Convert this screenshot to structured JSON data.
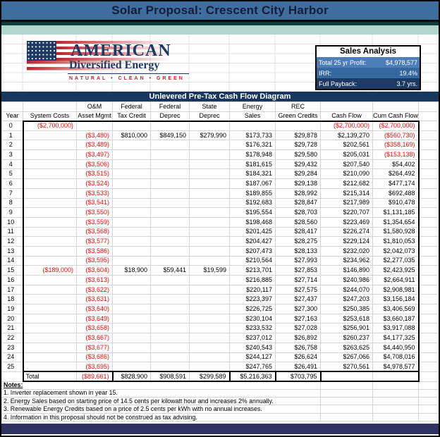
{
  "banner": {
    "title": "Solar Proposal: Crescent City Harbor"
  },
  "logo": {
    "name": "AMERICAN",
    "subtitle": "Diversified Energy",
    "tagline": "NATURAL • CLEAN • GREEN"
  },
  "sales_analysis": {
    "title": "Sales Analysis",
    "rows": [
      {
        "label": "Total 25 yr Profit:",
        "value": "$4,978,577"
      },
      {
        "label": "IRR:",
        "value": "19.4%"
      },
      {
        "label": "Full Payback:",
        "value": "3.7 yrs."
      }
    ]
  },
  "table": {
    "title": "Unlevered Pre-Tax Cash Flow Diagram",
    "header_top": [
      "",
      "",
      "O&M",
      "Federal",
      "Federal",
      "State",
      "Energy",
      "REC",
      "",
      "",
      ""
    ],
    "header_bottom": [
      "Year",
      "System Costs",
      "Asset Mgmt",
      "Tax Credit",
      "Deprec",
      "Deprec",
      "Sales",
      "Green Credits",
      "Cash Flow",
      "Cum Cash Flow",
      ""
    ],
    "rows": [
      [
        "0",
        "($2,700,000)",
        "",
        "",
        "",
        "",
        "",
        "",
        "($2,700,000)",
        "($2,700,000)"
      ],
      [
        "1",
        "",
        "($3,480)",
        "$810,000",
        "$849,150",
        "$279,990",
        "$173,733",
        "$29,878",
        "$2,139,270",
        "($560,730)"
      ],
      [
        "2",
        "",
        "($3,489)",
        "",
        "",
        "",
        "$176,321",
        "$29,728",
        "$202,561",
        "($358,169)"
      ],
      [
        "3",
        "",
        "($3,497)",
        "",
        "",
        "",
        "$178,948",
        "$29,580",
        "$205,031",
        "($153,138)"
      ],
      [
        "4",
        "",
        "($3,506)",
        "",
        "",
        "",
        "$181,615",
        "$29,432",
        "$207,540",
        "$54,402"
      ],
      [
        "5",
        "",
        "($3,515)",
        "",
        "",
        "",
        "$184,321",
        "$29,284",
        "$210,090",
        "$264,492"
      ],
      [
        "6",
        "",
        "($3,524)",
        "",
        "",
        "",
        "$187,067",
        "$29,138",
        "$212,682",
        "$477,174"
      ],
      [
        "7",
        "",
        "($3,533)",
        "",
        "",
        "",
        "$189,855",
        "$28,992",
        "$215,314",
        "$692,488"
      ],
      [
        "8",
        "",
        "($3,541)",
        "",
        "",
        "",
        "$192,683",
        "$28,847",
        "$217,989",
        "$910,478"
      ],
      [
        "9",
        "",
        "($3,550)",
        "",
        "",
        "",
        "$195,554",
        "$28,703",
        "$220,707",
        "$1,131,185"
      ],
      [
        "10",
        "",
        "($3,559)",
        "",
        "",
        "",
        "$198,468",
        "$28,560",
        "$223,469",
        "$1,354,654"
      ],
      [
        "11",
        "",
        "($3,568)",
        "",
        "",
        "",
        "$201,425",
        "$28,417",
        "$226,274",
        "$1,580,928"
      ],
      [
        "12",
        "",
        "($3,577)",
        "",
        "",
        "",
        "$204,427",
        "$28,275",
        "$229,124",
        "$1,810,053"
      ],
      [
        "13",
        "",
        "($3,586)",
        "",
        "",
        "",
        "$207,473",
        "$28,133",
        "$232,020",
        "$2,042,073"
      ],
      [
        "14",
        "",
        "($3,595)",
        "",
        "",
        "",
        "$210,564",
        "$27,993",
        "$234,962",
        "$2,277,035"
      ],
      [
        "15",
        "($189,000)",
        "($3,604)",
        "$18,900",
        "$59,441",
        "$19,599",
        "$213,701",
        "$27,853",
        "$146,890",
        "$2,423,925"
      ],
      [
        "16",
        "",
        "($3,613)",
        "",
        "",
        "",
        "$216,885",
        "$27,714",
        "$240,986",
        "$2,664,911"
      ],
      [
        "17",
        "",
        "($3,622)",
        "",
        "",
        "",
        "$220,117",
        "$27,575",
        "$244,070",
        "$2,908,981"
      ],
      [
        "18",
        "",
        "($3,631)",
        "",
        "",
        "",
        "$223,397",
        "$27,437",
        "$247,203",
        "$3,156,184"
      ],
      [
        "19",
        "",
        "($3,640)",
        "",
        "",
        "",
        "$226,725",
        "$27,300",
        "$250,385",
        "$3,406,569"
      ],
      [
        "20",
        "",
        "($3,649)",
        "",
        "",
        "",
        "$230,104",
        "$27,163",
        "$253,618",
        "$3,660,187"
      ],
      [
        "21",
        "",
        "($3,658)",
        "",
        "",
        "",
        "$233,532",
        "$27,028",
        "$256,901",
        "$3,917,088"
      ],
      [
        "22",
        "",
        "($3,667)",
        "",
        "",
        "",
        "$237,012",
        "$26,892",
        "$260,237",
        "$4,177,325"
      ],
      [
        "23",
        "",
        "($3,677)",
        "",
        "",
        "",
        "$240,543",
        "$26,758",
        "$263,625",
        "$4,440,950"
      ],
      [
        "24",
        "",
        "($3,686)",
        "",
        "",
        "",
        "$244,127",
        "$26,624",
        "$267,066",
        "$4,708,016"
      ],
      [
        "25",
        "",
        "($3,695)",
        "",
        "",
        "",
        "$247,765",
        "$26,491",
        "$270,561",
        "$4,978,577"
      ]
    ],
    "total_row": [
      "",
      "Total",
      "($89,661)",
      "$828,900",
      "$908,591",
      "$299,589",
      "$5,216,363",
      "$703,795",
      "",
      ""
    ]
  },
  "notes": {
    "heading": "Notes:",
    "items": [
      "1. Inverter replacement shown in year 15.",
      "2. Energy Sales based on starting price of 14.5 cents per kilowatt hour and increases 2% annually.",
      "3. Renewable Energy Credits based on a price of 2.5 cents per kWh with no annual increases.",
      "4. Information in this proposal should not be construed as tax advising."
    ]
  },
  "colors": {
    "banner_blue": "#3E6D9E",
    "stripe_dark_teal": "#0E3D3C",
    "stripe_light_teal": "#B0D6CE",
    "title_bar_navy": "#17375E",
    "sales_row1_blue": "#4D7EB8",
    "sales_row2_blue": "#35689F",
    "sales_row3_navy": "#1C3A63",
    "negative_red": "#EE0A0A",
    "footer_indigo": "#2F3163",
    "logo_navy": "#1F3864",
    "logo_red": "#C0222B"
  }
}
